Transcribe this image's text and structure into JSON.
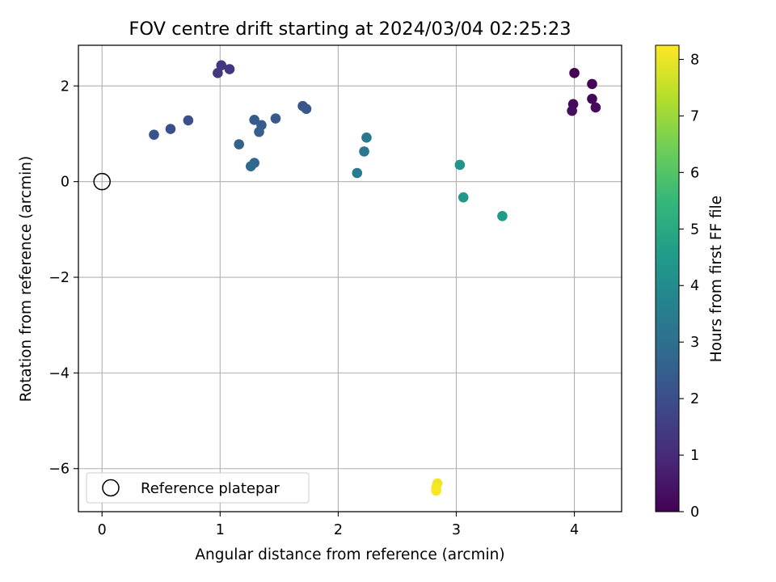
{
  "chart_data": {
    "type": "scatter",
    "title": "FOV centre drift starting at 2024/03/04 02:25:23",
    "xlabel": "Angular distance from reference (arcmin)",
    "ylabel": "Rotation from reference (arcmin)",
    "xlim": [
      -0.2,
      4.4
    ],
    "ylim": [
      -6.9,
      2.85
    ],
    "xticks": [
      0,
      1,
      2,
      3,
      4
    ],
    "xtick_labels": [
      "0",
      "1",
      "2",
      "3",
      "4"
    ],
    "yticks": [
      2,
      0,
      -2,
      -4,
      -6
    ],
    "ytick_labels": [
      "2",
      "0",
      "−2",
      "−4",
      "−6"
    ],
    "grid": true,
    "legend": {
      "placement": "lower-left",
      "entries": [
        "Reference platepar"
      ]
    },
    "reference_point": {
      "x": 0,
      "y": 0
    },
    "colorbar": {
      "label": "Hours from first FF file",
      "range": [
        0,
        8.25
      ],
      "ticks": [
        0,
        1,
        2,
        3,
        4,
        5,
        6,
        7,
        8
      ],
      "tick_labels": [
        "0",
        "1",
        "2",
        "3",
        "4",
        "5",
        "6",
        "7",
        "8"
      ],
      "colormap": "viridis",
      "colors": [
        "#440154",
        "#482878",
        "#3e4989",
        "#31688e",
        "#26828e",
        "#1f9e89",
        "#35b779",
        "#6ece58",
        "#b5de2b",
        "#fde725"
      ]
    },
    "points": [
      {
        "x": 4.0,
        "y": 2.27,
        "c": 0.0
      },
      {
        "x": 4.15,
        "y": 2.04,
        "c": 0.1
      },
      {
        "x": 4.15,
        "y": 1.73,
        "c": 0.15
      },
      {
        "x": 3.99,
        "y": 1.62,
        "c": 0.2
      },
      {
        "x": 4.18,
        "y": 1.55,
        "c": 0.25
      },
      {
        "x": 3.98,
        "y": 1.48,
        "c": 0.3
      },
      {
        "x": 1.01,
        "y": 2.43,
        "c": 1.3
      },
      {
        "x": 1.08,
        "y": 2.35,
        "c": 1.35
      },
      {
        "x": 0.98,
        "y": 2.27,
        "c": 1.4
      },
      {
        "x": 0.73,
        "y": 1.28,
        "c": 2.0
      },
      {
        "x": 0.58,
        "y": 1.1,
        "c": 2.05
      },
      {
        "x": 0.44,
        "y": 0.98,
        "c": 2.1
      },
      {
        "x": 1.7,
        "y": 1.58,
        "c": 2.2
      },
      {
        "x": 1.73,
        "y": 1.52,
        "c": 2.25
      },
      {
        "x": 1.47,
        "y": 1.32,
        "c": 2.3
      },
      {
        "x": 1.29,
        "y": 1.29,
        "c": 2.4
      },
      {
        "x": 1.35,
        "y": 1.18,
        "c": 2.45
      },
      {
        "x": 1.33,
        "y": 1.04,
        "c": 2.5
      },
      {
        "x": 1.16,
        "y": 0.78,
        "c": 2.6
      },
      {
        "x": 1.29,
        "y": 0.39,
        "c": 2.7
      },
      {
        "x": 1.26,
        "y": 0.32,
        "c": 2.75
      },
      {
        "x": 2.24,
        "y": 0.92,
        "c": 3.3
      },
      {
        "x": 2.22,
        "y": 0.63,
        "c": 3.35
      },
      {
        "x": 2.16,
        "y": 0.18,
        "c": 3.4
      },
      {
        "x": 3.03,
        "y": 0.35,
        "c": 4.3
      },
      {
        "x": 3.06,
        "y": -0.33,
        "c": 4.4
      },
      {
        "x": 3.39,
        "y": -0.72,
        "c": 4.5
      },
      {
        "x": 2.84,
        "y": -6.31,
        "c": 8.1
      },
      {
        "x": 2.83,
        "y": -6.4,
        "c": 8.15
      },
      {
        "x": 2.83,
        "y": -6.46,
        "c": 8.2
      }
    ]
  }
}
